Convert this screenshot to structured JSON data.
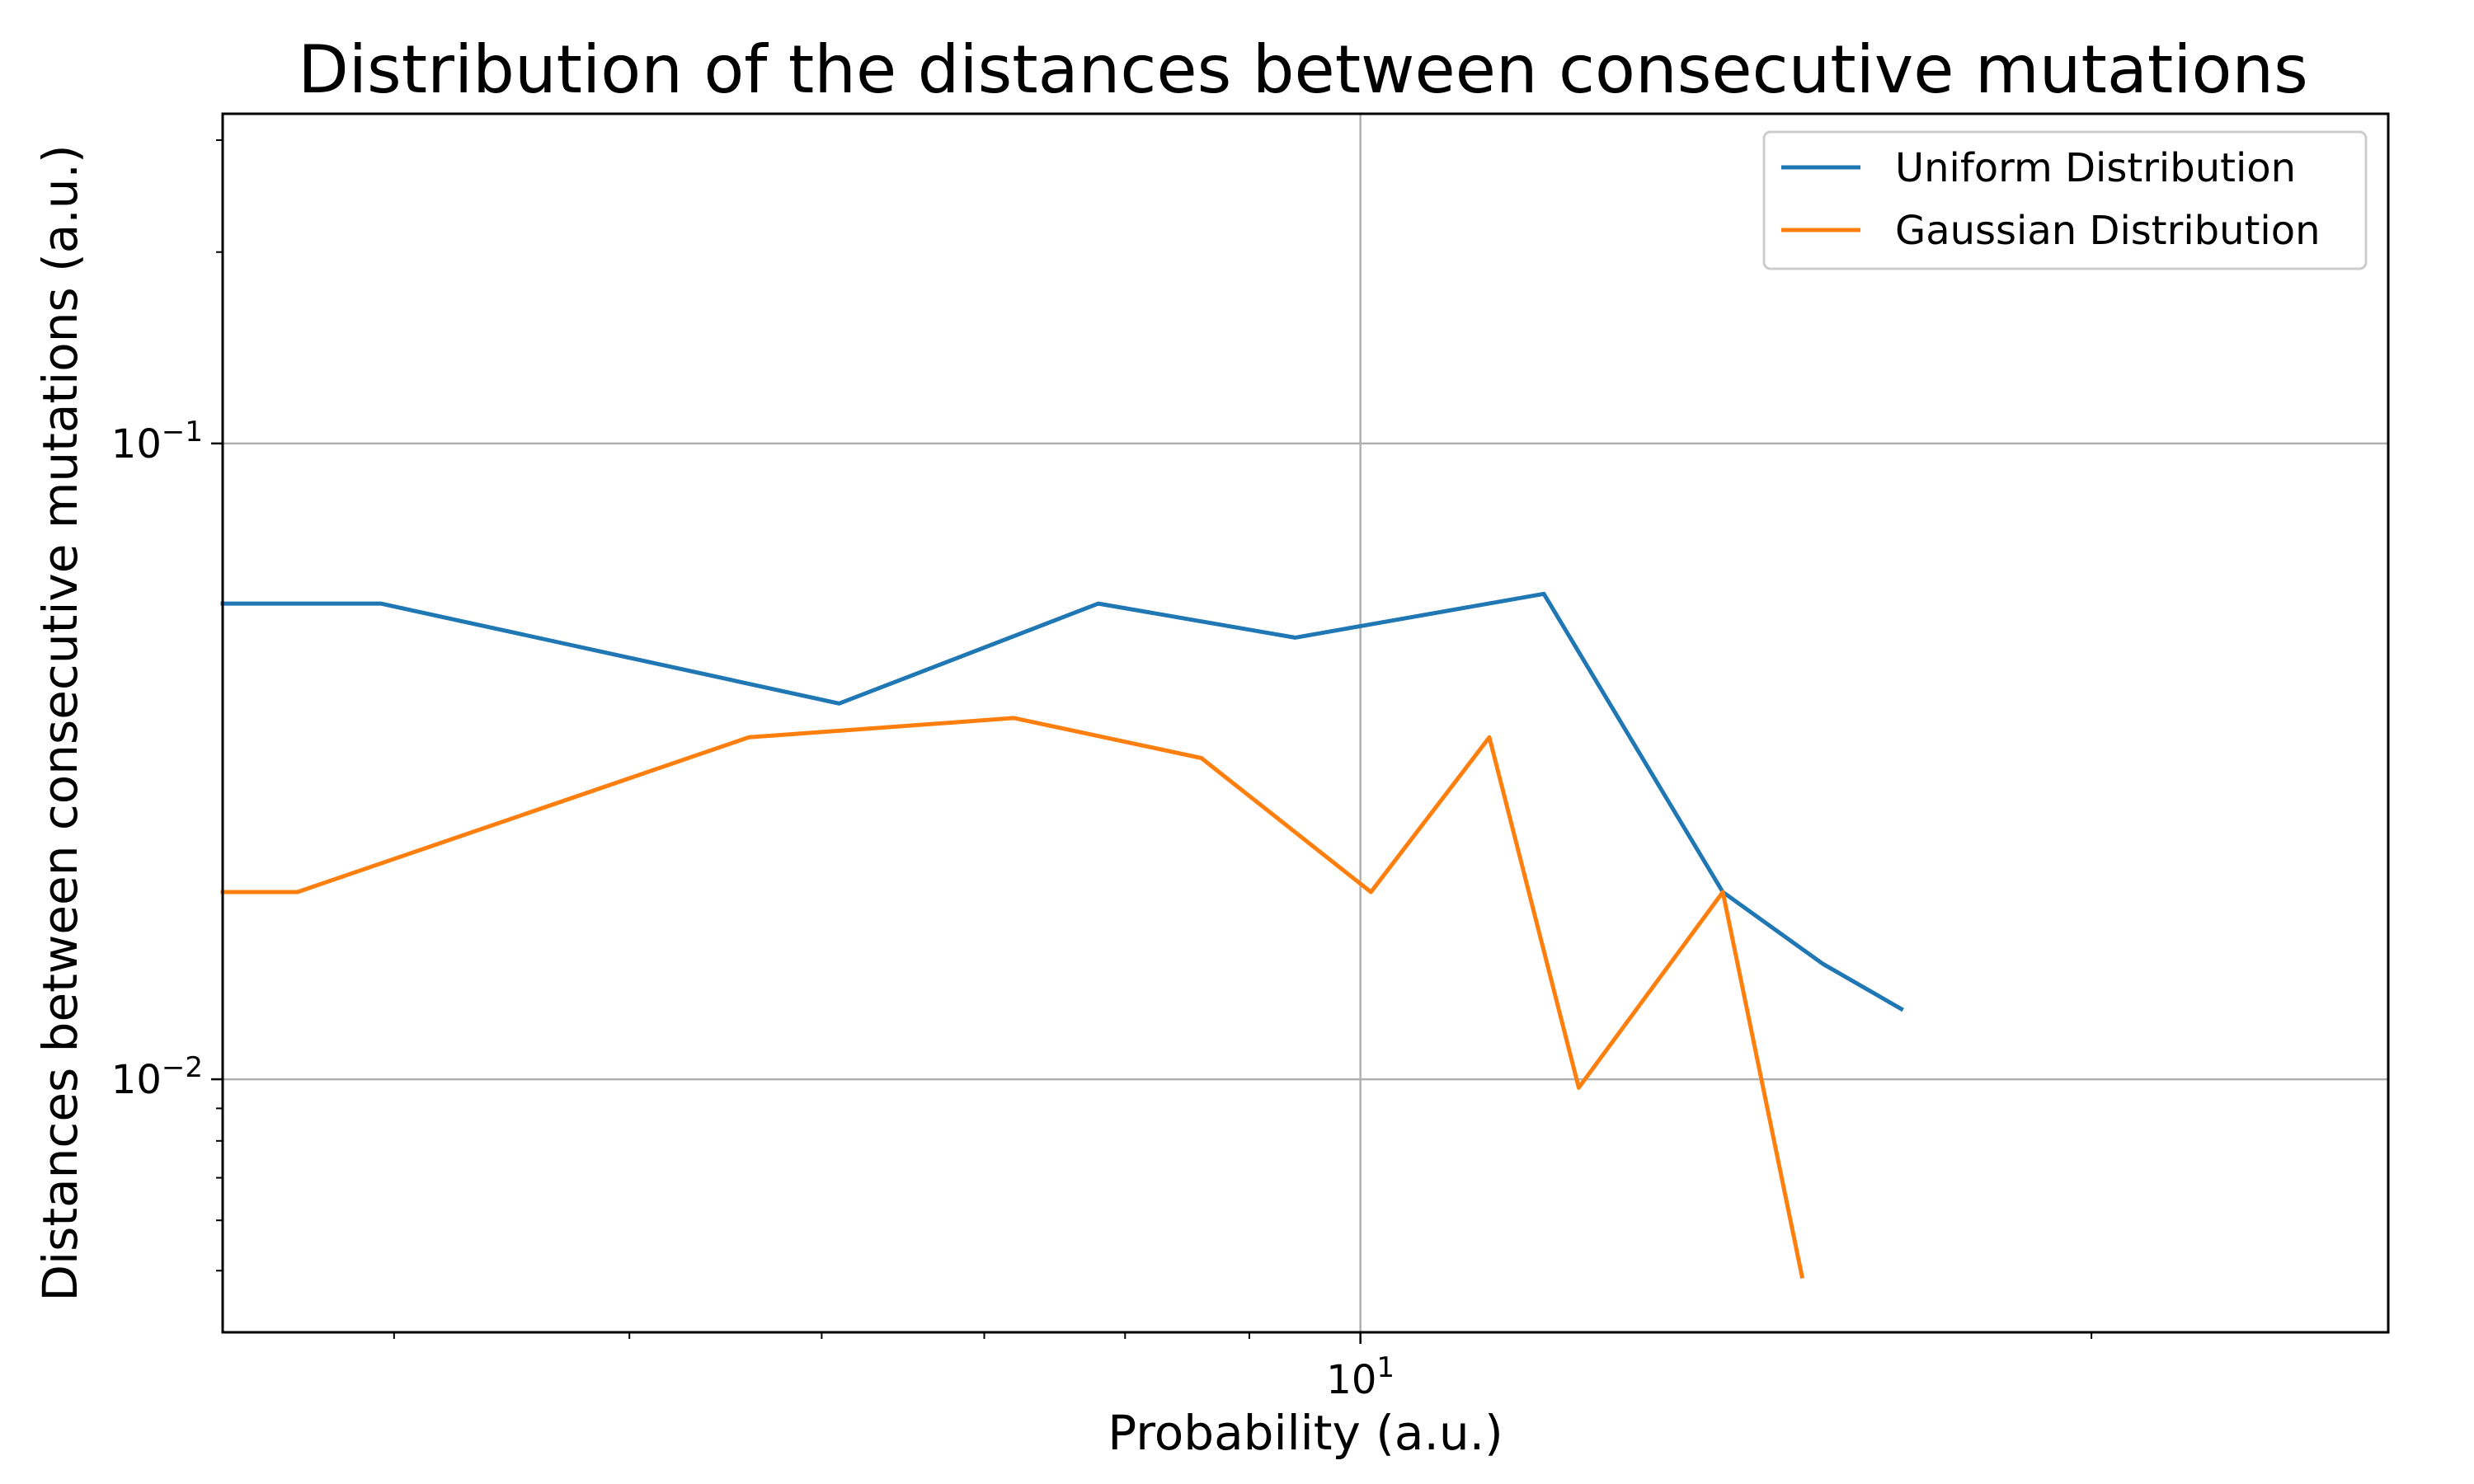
{
  "chart_data": {
    "type": "line",
    "title": "Distribution of the distances between consecutive mutations",
    "xlabel": "Probability (a.u.)",
    "ylabel": "Distances between consecutive mutations (a.u.)",
    "xscale": "log",
    "yscale": "log",
    "xlim": [
      3.4,
      26.5
    ],
    "ylim": [
      0.004,
      0.33
    ],
    "xticks": [
      {
        "value": 10,
        "base": "10",
        "exp": "1"
      }
    ],
    "yticks": [
      {
        "value": 0.1,
        "base": "10",
        "exp": "−1"
      },
      {
        "value": 0.01,
        "base": "10",
        "exp": "−2"
      }
    ],
    "x_minor_ticks": [
      4,
      5,
      6,
      7,
      8,
      9,
      20
    ],
    "y_minor_ticks": [
      0.005,
      0.006,
      0.007,
      0.008,
      0.009,
      0.2,
      0.3
    ],
    "grid": true,
    "legend_position": "top-right",
    "series": [
      {
        "name": "Uniform Distribution",
        "color": "#1f77b4",
        "points": [
          [
            3.4,
            0.056
          ],
          [
            3.95,
            0.056
          ],
          [
            6.1,
            0.039
          ],
          [
            7.8,
            0.056
          ],
          [
            9.4,
            0.0495
          ],
          [
            11.9,
            0.058
          ],
          [
            14.1,
            0.0197
          ],
          [
            15.5,
            0.0152
          ],
          [
            16.7,
            0.0129
          ]
        ]
      },
      {
        "name": "Gaussian Distribution",
        "color": "#ff7f0e",
        "points": [
          [
            3.4,
            0.0197
          ],
          [
            3.65,
            0.0197
          ],
          [
            5.6,
            0.0345
          ],
          [
            7.2,
            0.037
          ],
          [
            8.6,
            0.032
          ],
          [
            10.1,
            0.0197
          ],
          [
            11.3,
            0.0345
          ],
          [
            12.3,
            0.0097
          ],
          [
            14.1,
            0.0197
          ],
          [
            15.2,
            0.0049
          ]
        ]
      }
    ]
  }
}
